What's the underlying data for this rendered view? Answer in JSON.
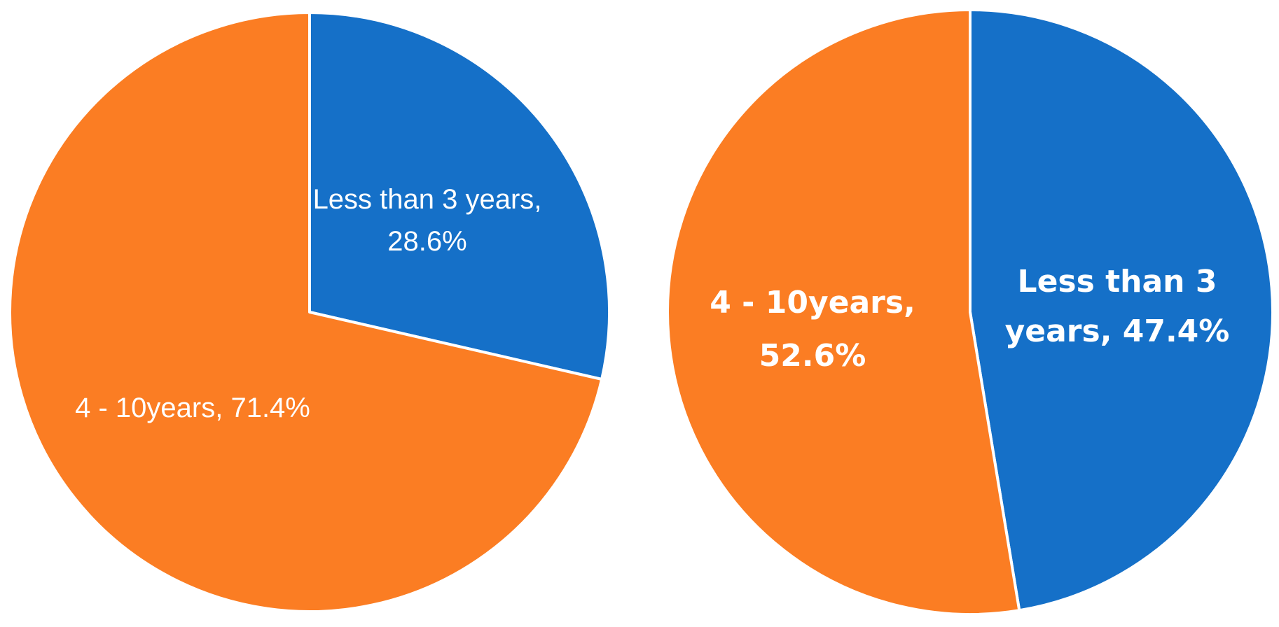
{
  "colors": {
    "blue": "#1570C8",
    "orange": "#FB7D23",
    "separator": "#ffffff"
  },
  "chart_data": [
    {
      "type": "pie",
      "start": "top, clockwise",
      "slices": [
        {
          "category": "Less than 3 years",
          "value": 28.6,
          "label_line1": "Less than 3 years,",
          "label_line2": "28.6%",
          "color": "#1570C8"
        },
        {
          "category": "4 - 10years",
          "value": 71.4,
          "label_line1": "4 - 10years, 71.4%",
          "label_line2": "",
          "color": "#FB7D23"
        }
      ]
    },
    {
      "type": "pie",
      "start": "top, clockwise",
      "slices": [
        {
          "category": "Less than 3 years",
          "value": 47.4,
          "label_line1": "Less than 3",
          "label_line2": "years, 47.4%",
          "color": "#1570C8"
        },
        {
          "category": "4 - 10years",
          "value": 52.6,
          "label_line1": "4 - 10years,",
          "label_line2": "52.6%",
          "color": "#FB7D23"
        }
      ]
    }
  ]
}
